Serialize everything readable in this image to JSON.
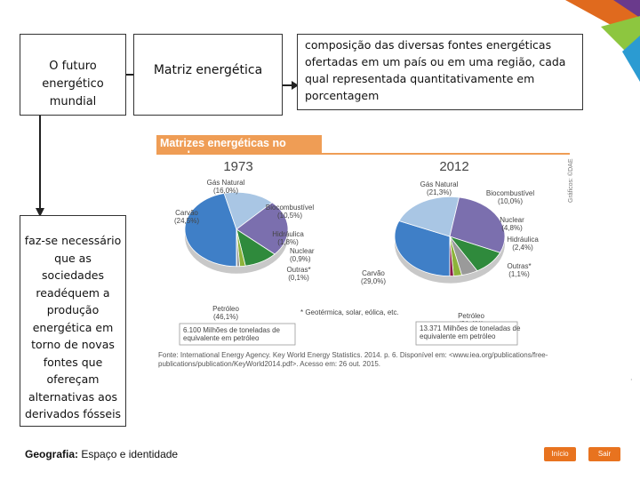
{
  "boxes": {
    "futuro": "O futuro energético mundial",
    "matriz": "Matriz energética",
    "definicao": "composição das diversas fontes energéticas ofertadas em um país ou em uma região, cada qual representada quantitativamente em porcentagem",
    "faz": "faz-se necessário que as sociedades readéquem a produção energética em torno de novas fontes que ofereçam alternativas aos derivados fósseis"
  },
  "footer": {
    "subject_bold": "Geografia:",
    "subject_rest": " Espaço e identidade",
    "inicio": "Início",
    "sair": "Sair"
  },
  "figure": {
    "title": "Matrizes energéticas no mundo",
    "credit": "Gráficos: ©DAE",
    "note": "* Geotérmica, solar, eólica, etc.",
    "source_line1": "Fonte: International Energy Agency. Key World Energy Statistics. 2014. p. 6. Disponível em: <www.iea.org/publications/free-",
    "source_line2": "publications/publication/KeyWorld2014.pdf>. Acesso em: 26 out. 2015."
  },
  "chart_data": [
    {
      "type": "pie",
      "title": "1973",
      "total_label": "6.100 Milhões de toneladas de equivalente em petróleo",
      "categories": [
        "Petróleo",
        "Gás Natural",
        "Carvão",
        "Biocombustível",
        "Hidráulica",
        "Nuclear",
        "Outras*"
      ],
      "values": [
        46.1,
        16.0,
        24.5,
        10.5,
        1.8,
        0.9,
        0.1
      ],
      "labels": [
        "(46,1%)",
        "(16,0%)",
        "(24,5%)",
        "(10,5%)",
        "(1,8%)",
        "(0,9%)",
        "(0,1%)"
      ],
      "colors": [
        "#3f7fc7",
        "#a9c6e4",
        "#7b6fae",
        "#2f8a3c",
        "#8db33a",
        "#9a9a9a",
        "#8a1a4a"
      ]
    },
    {
      "type": "pie",
      "title": "2012",
      "total_label": "13.371 Milhões de toneladas de equivalente em petróleo",
      "categories": [
        "Petróleo",
        "Gás Natural",
        "Carvão",
        "Biocombustível",
        "Nuclear",
        "Hidráulica",
        "Outras*"
      ],
      "values": [
        31.4,
        21.3,
        29.0,
        10.0,
        4.8,
        2.4,
        1.1
      ],
      "labels": [
        "(31,4%)",
        "(21,3%)",
        "(29,0%)",
        "(10,0%)",
        "(4,8%)",
        "(2,4%)",
        "(1,1%)"
      ],
      "colors": [
        "#3f7fc7",
        "#a9c6e4",
        "#7b6fae",
        "#2f8a3c",
        "#9a9a9a",
        "#8db33a",
        "#8a1a4a"
      ]
    }
  ]
}
